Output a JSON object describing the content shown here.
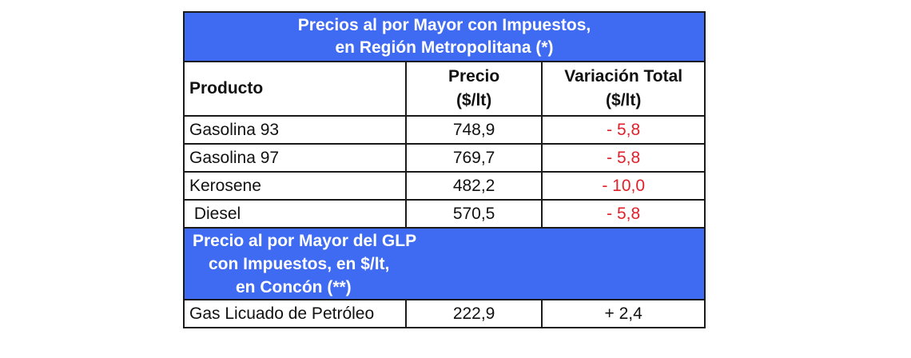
{
  "title": {
    "line1": "Precios al por Mayor con Impuestos,",
    "line2": "en Región Metropolitana (*)"
  },
  "headers": {
    "product": "Producto",
    "price_line1": "Precio",
    "price_line2": "($/lt)",
    "variation_line1": "Variación  Total",
    "variation_line2": "($/lt)"
  },
  "rows": [
    {
      "product": "Gasolina 93",
      "price": "748,9",
      "variation": "- 5,8"
    },
    {
      "product": "Gasolina 97",
      "price": "769,7",
      "variation": "- 5,8"
    },
    {
      "product": "Kerosene",
      "price": "482,2",
      "variation": "- 10,0"
    },
    {
      "product": " Diesel",
      "price": "570,5",
      "variation": "- 5,8"
    }
  ],
  "glp_section": {
    "line1": "Precio al por Mayor del GLP",
    "line2": "con Impuestos,  en $/lt,",
    "line3": "en Concón (**)"
  },
  "glp_row": {
    "product": "Gas Licuado de Petróleo",
    "price": "222,9",
    "variation": "+ 2,4"
  },
  "colors": {
    "header_blue": "#3f6bf2",
    "negative_red": "#e0202a"
  }
}
